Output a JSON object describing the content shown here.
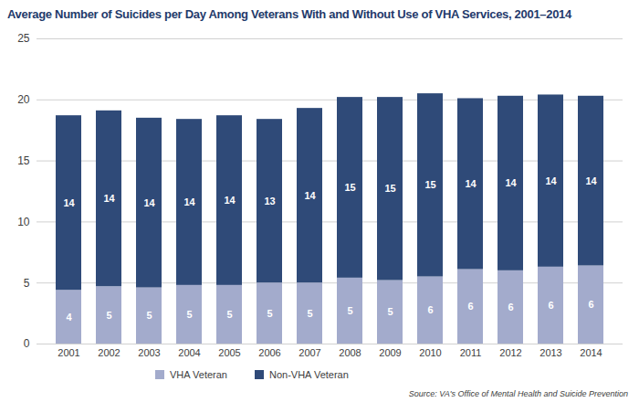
{
  "chart_data": {
    "type": "bar",
    "title": "Average Number of Suicides per Day Among Veterans With and Without Use of VHA Services, 2001–2014",
    "source": "Source: VA's Office of Mental Health and Suicide Prevention",
    "categories": [
      "2001",
      "2002",
      "2003",
      "2004",
      "2005",
      "2006",
      "2007",
      "2008",
      "2009",
      "2010",
      "2011",
      "2012",
      "2013",
      "2014"
    ],
    "series": [
      {
        "name": "VHA Veteran",
        "color": "#a3abcc",
        "values": [
          4.4,
          4.7,
          4.6,
          4.8,
          4.8,
          5.0,
          5.0,
          5.4,
          5.2,
          5.5,
          6.1,
          6.0,
          6.3,
          6.4
        ],
        "value_labels": [
          "4",
          "5",
          "5",
          "5",
          "5",
          "5",
          "5",
          "5",
          "5",
          "6",
          "6",
          "6",
          "6",
          "6"
        ]
      },
      {
        "name": "Non-VHA Veteran",
        "color": "#2f4a78",
        "values": [
          14.3,
          14.4,
          13.9,
          13.6,
          13.9,
          13.4,
          14.3,
          14.8,
          15.0,
          15.0,
          14.0,
          14.3,
          14.1,
          13.9
        ],
        "value_labels": [
          "14",
          "14",
          "14",
          "14",
          "14",
          "13",
          "14",
          "15",
          "15",
          "15",
          "14",
          "14",
          "14",
          "14"
        ]
      }
    ],
    "ylim": [
      0,
      25
    ],
    "yticks": [
      0,
      5,
      10,
      15,
      20,
      25
    ],
    "grid": true,
    "stacked": true,
    "data_labels": true,
    "legend": "bottom"
  }
}
